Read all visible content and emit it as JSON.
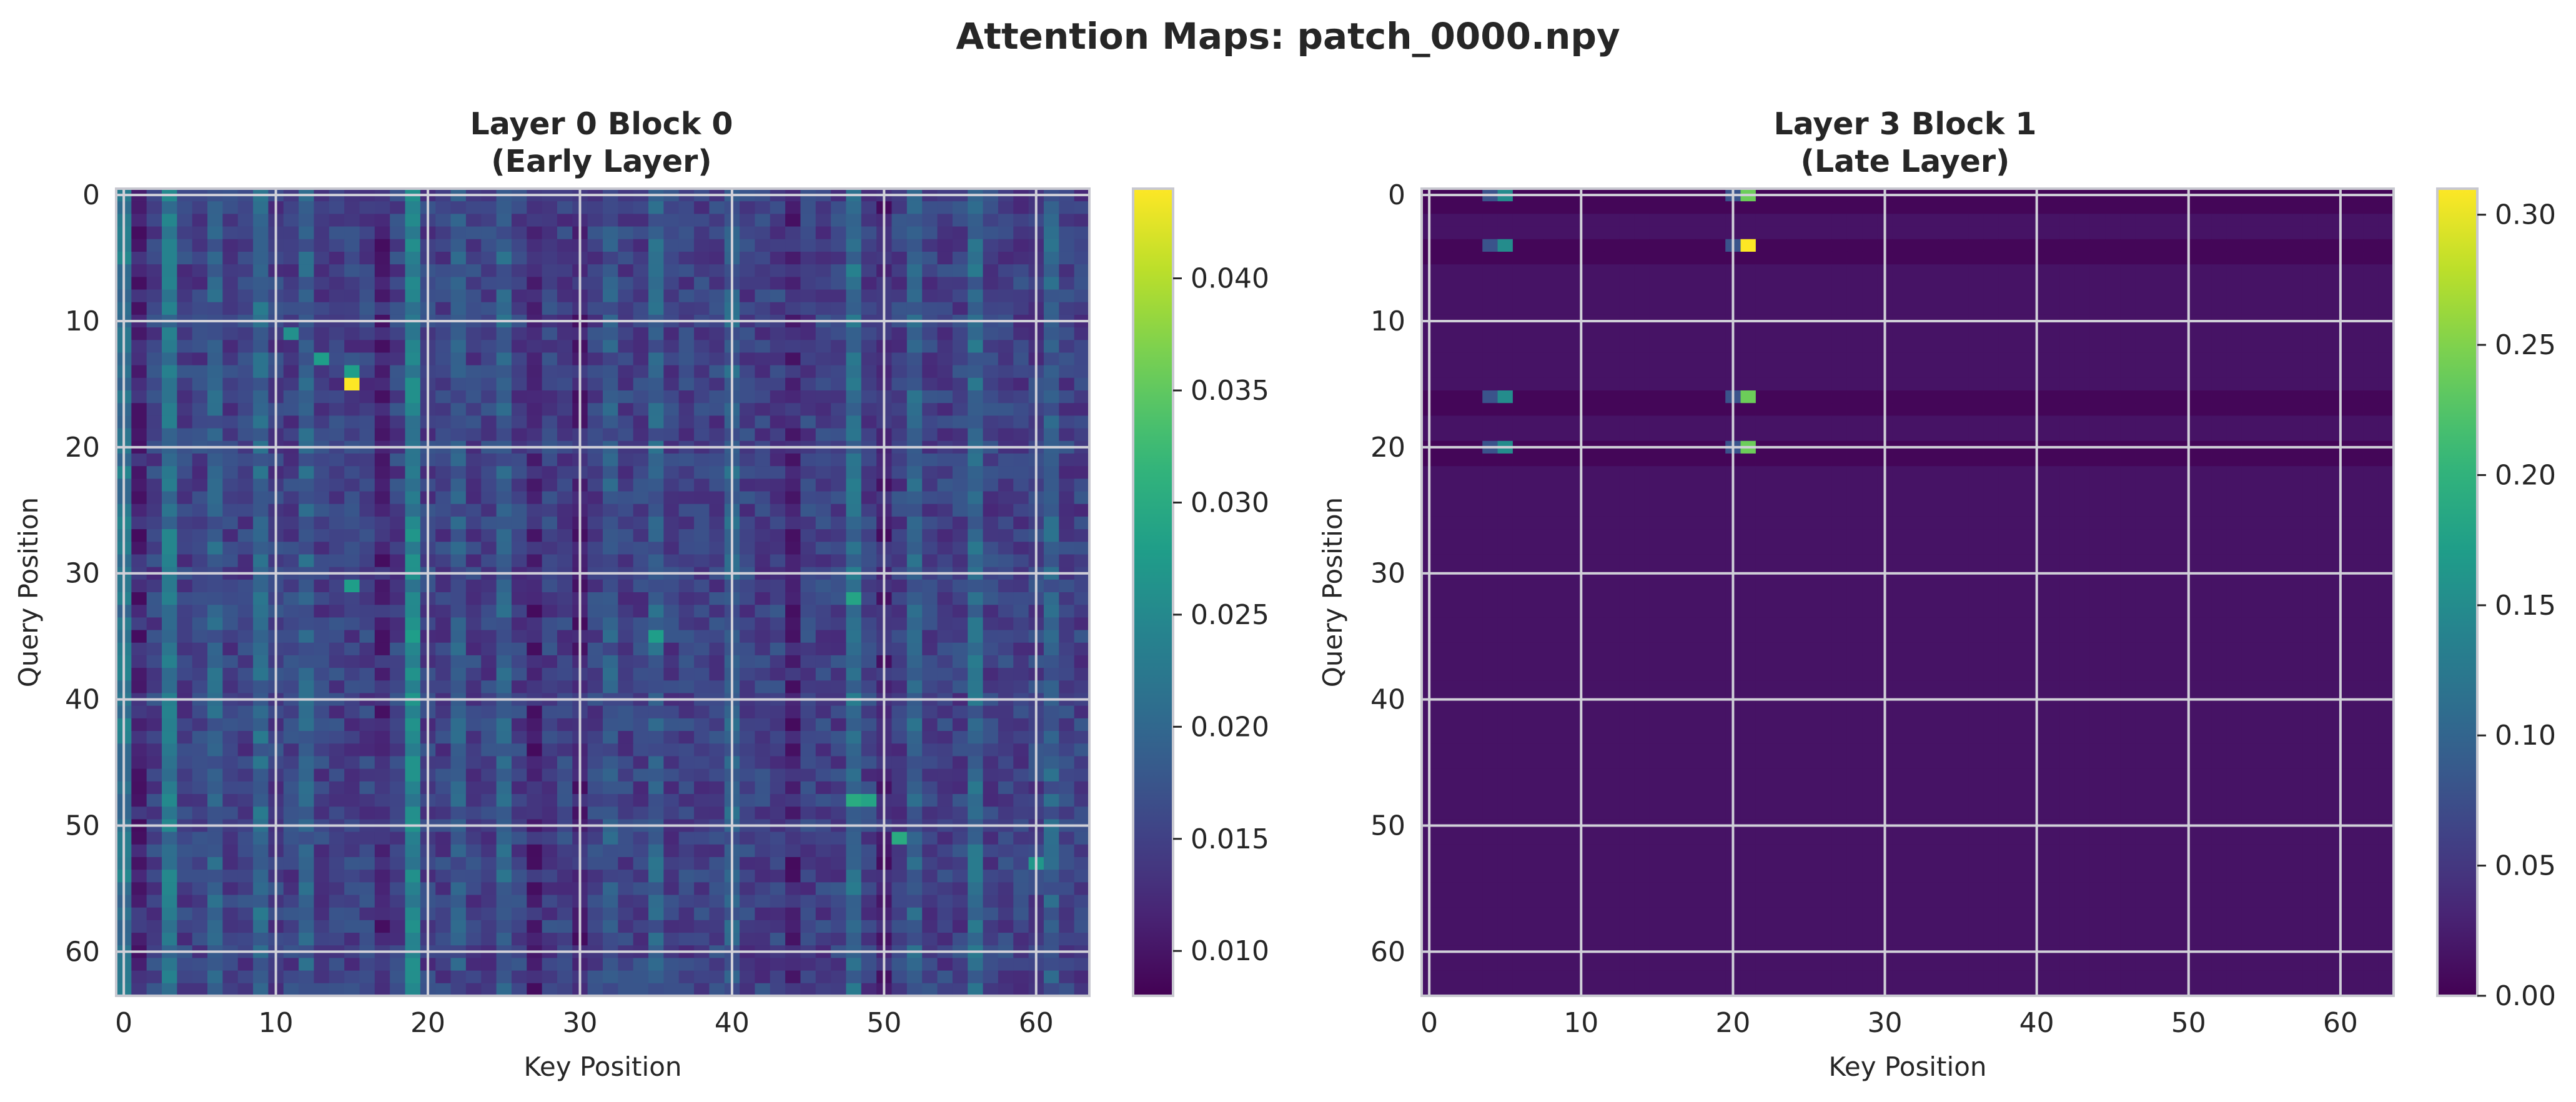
{
  "title": "Attention Maps: patch_0000.npy",
  "colors": {
    "viridis": [
      "#440154",
      "#482878",
      "#3e4989",
      "#31688e",
      "#26828e",
      "#1f9e89",
      "#35b779",
      "#6ece58",
      "#b5de2b",
      "#fde725"
    ],
    "grid": "#d0d0d8",
    "frame": "#c8c8d0"
  },
  "chart_data": [
    {
      "type": "heatmap",
      "title_line1": "Layer 0 Block 0",
      "title_line2": "(Early Layer)",
      "xlabel": "Key Position",
      "ylabel": "Query Position",
      "rows": 64,
      "cols": 64,
      "x_ticks": [
        "0",
        "10",
        "20",
        "30",
        "40",
        "50",
        "60"
      ],
      "y_ticks": [
        "0",
        "10",
        "20",
        "30",
        "40",
        "50",
        "60"
      ],
      "grid": true,
      "colorbar": {
        "min": 0.008,
        "max": 0.044,
        "ticks": [
          0.01,
          0.015,
          0.02,
          0.025,
          0.03,
          0.035,
          0.04
        ],
        "tick_labels": [
          "0.010",
          "0.015",
          "0.020",
          "0.025",
          "0.030",
          "0.035",
          "0.040"
        ]
      },
      "approx_values": {
        "baseline": 0.015,
        "bright_columns": [
          {
            "col": 0,
            "value": 0.022
          },
          {
            "col": 3,
            "value": 0.022
          },
          {
            "col": 6,
            "value": 0.019
          },
          {
            "col": 9,
            "value": 0.02
          },
          {
            "col": 12,
            "value": 0.019
          },
          {
            "col": 19,
            "value": 0.024
          },
          {
            "col": 22,
            "value": 0.018
          },
          {
            "col": 25,
            "value": 0.019
          },
          {
            "col": 32,
            "value": 0.018
          },
          {
            "col": 35,
            "value": 0.019
          },
          {
            "col": 40,
            "value": 0.019
          },
          {
            "col": 48,
            "value": 0.021
          },
          {
            "col": 52,
            "value": 0.019
          },
          {
            "col": 56,
            "value": 0.02
          },
          {
            "col": 61,
            "value": 0.019
          }
        ],
        "dark_columns": [
          {
            "col": 1,
            "value": 0.012
          },
          {
            "col": 17,
            "value": 0.012
          },
          {
            "col": 27,
            "value": 0.012
          },
          {
            "col": 30,
            "value": 0.012
          },
          {
            "col": 44,
            "value": 0.012
          },
          {
            "col": 50,
            "value": 0.012
          }
        ],
        "peaks": [
          {
            "row": 15,
            "col": 15,
            "value": 0.044
          },
          {
            "row": 48,
            "col": 48,
            "value": 0.03
          },
          {
            "row": 48,
            "col": 49,
            "value": 0.029
          },
          {
            "row": 35,
            "col": 35,
            "value": 0.028
          },
          {
            "row": 32,
            "col": 48,
            "value": 0.029
          },
          {
            "row": 51,
            "col": 51,
            "value": 0.03
          },
          {
            "row": 13,
            "col": 13,
            "value": 0.028
          },
          {
            "row": 11,
            "col": 11,
            "value": 0.026
          },
          {
            "row": 14,
            "col": 15,
            "value": 0.028
          },
          {
            "row": 31,
            "col": 15,
            "value": 0.028
          },
          {
            "row": 35,
            "col": 19,
            "value": 0.028
          },
          {
            "row": 53,
            "col": 60,
            "value": 0.027
          }
        ]
      }
    },
    {
      "type": "heatmap",
      "title_line1": "Layer 3 Block 1",
      "title_line2": "(Late Layer)",
      "xlabel": "Key Position",
      "ylabel": "Query Position",
      "rows": 64,
      "cols": 64,
      "x_ticks": [
        "0",
        "10",
        "20",
        "30",
        "40",
        "50",
        "60"
      ],
      "y_ticks": [
        "0",
        "10",
        "20",
        "30",
        "40",
        "50",
        "60"
      ],
      "grid": true,
      "colorbar": {
        "min": 0.0,
        "max": 0.31,
        "ticks": [
          0.0,
          0.05,
          0.1,
          0.15,
          0.2,
          0.25,
          0.3
        ],
        "tick_labels": [
          "0.00",
          "0.05",
          "0.10",
          "0.15",
          "0.20",
          "0.25",
          "0.30"
        ]
      },
      "approx_values": {
        "baseline": 0.016,
        "dark_rows": [
          0,
          1,
          4,
          5,
          16,
          17,
          20,
          21
        ],
        "hot_rows": [
          {
            "row": 0,
            "col4": 0.08,
            "col5": 0.15,
            "col20": 0.08,
            "col21": 0.24
          },
          {
            "row": 4,
            "col4": 0.08,
            "col5": 0.15,
            "col20": 0.08,
            "col21": 0.31
          },
          {
            "row": 16,
            "col4": 0.08,
            "col5": 0.15,
            "col20": 0.08,
            "col21": 0.24
          },
          {
            "row": 20,
            "col4": 0.08,
            "col5": 0.15,
            "col20": 0.08,
            "col21": 0.24
          }
        ]
      }
    }
  ]
}
